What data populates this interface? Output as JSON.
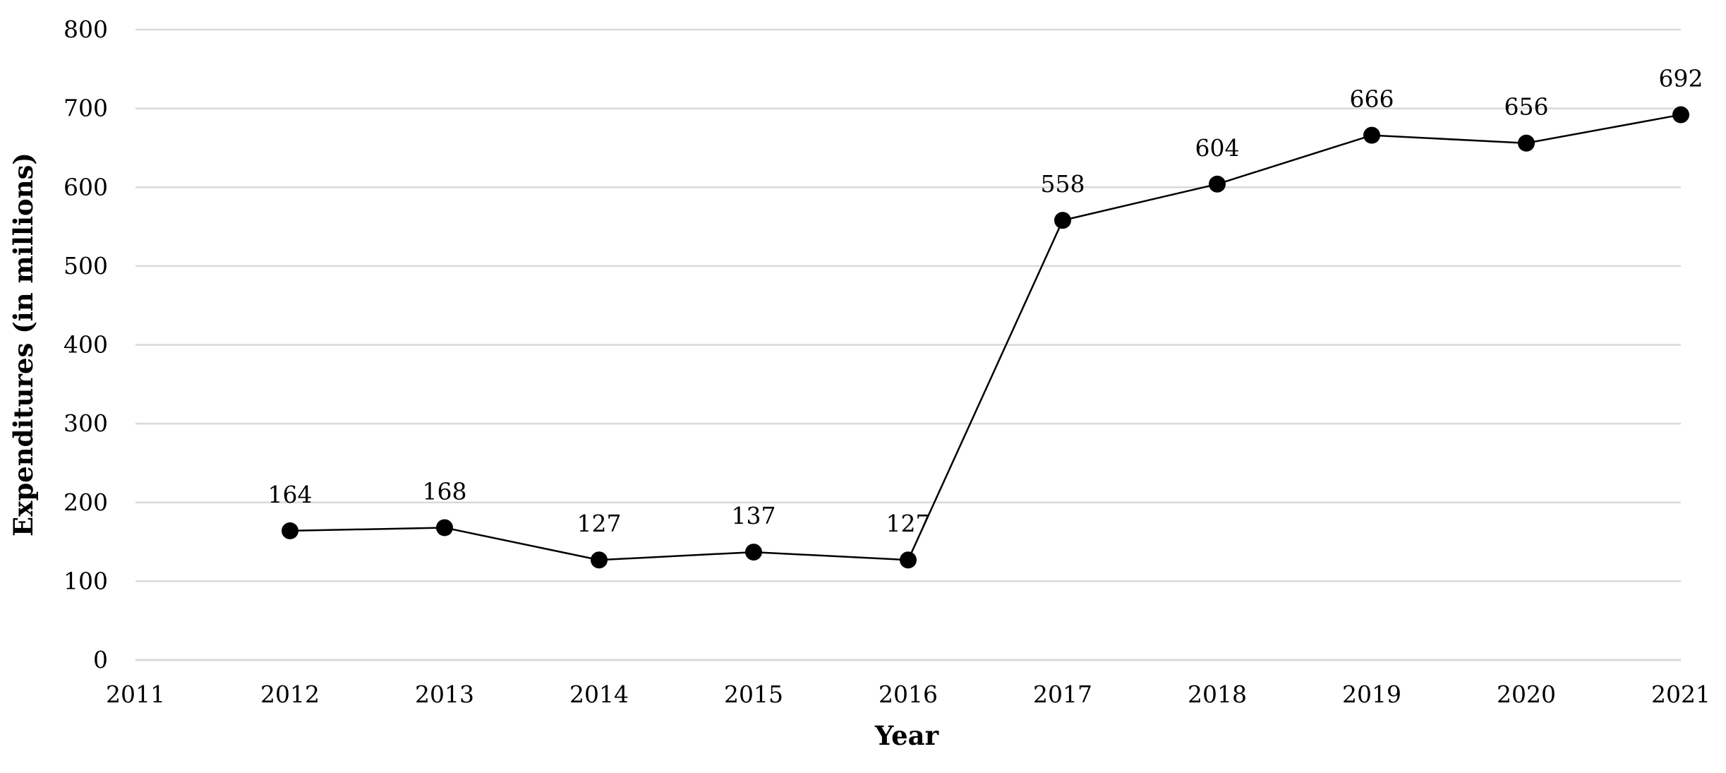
{
  "chart_data": {
    "type": "line",
    "title": "",
    "xlabel": "Year",
    "ylabel": "Expenditures (in millions)",
    "x_ticks": [
      "2011",
      "2012",
      "2013",
      "2014",
      "2015",
      "2016",
      "2017",
      "2018",
      "2019",
      "2020",
      "2021"
    ],
    "y_ticks": [
      "0",
      "100",
      "200",
      "300",
      "400",
      "500",
      "600",
      "700",
      "800"
    ],
    "xlim": [
      2011,
      2021
    ],
    "ylim": [
      0,
      800
    ],
    "grid": "horizontal",
    "legend": "none",
    "series": [
      {
        "x": [
          2012,
          2013,
          2014,
          2015,
          2016,
          2017,
          2018,
          2019,
          2020,
          2021
        ],
        "values": [
          164,
          168,
          127,
          137,
          127,
          558,
          604,
          666,
          656,
          692
        ],
        "labels": [
          "164",
          "168",
          "127",
          "137",
          "127",
          "558",
          "604",
          "666",
          "656",
          "692"
        ],
        "color": "#000000"
      }
    ]
  }
}
